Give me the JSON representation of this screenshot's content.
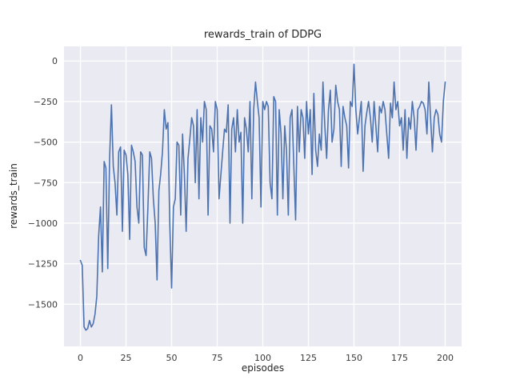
{
  "chart_data": {
    "type": "line",
    "title": "rewards_train of DDPG",
    "xlabel": "episodes",
    "ylabel": "rewards_train",
    "series_name": "rewards_train",
    "grid": true,
    "legend": "none",
    "plot_bg": "#eaeaf2",
    "grid_color": "#ffffff",
    "line_color": "#4c72b0",
    "xlim": [
      -9,
      209
    ],
    "ylim": [
      -1760,
      90
    ],
    "xticks": [
      0,
      25,
      50,
      75,
      100,
      125,
      150,
      175,
      200
    ],
    "yticks": [
      0,
      -250,
      -500,
      -750,
      -1000,
      -1250,
      -1500
    ],
    "x_start": 0,
    "x_step": 1,
    "values": [
      -1230,
      -1260,
      -1640,
      -1660,
      -1650,
      -1600,
      -1640,
      -1620,
      -1560,
      -1450,
      -1080,
      -900,
      -1300,
      -620,
      -660,
      -1280,
      -600,
      -270,
      -650,
      -750,
      -950,
      -560,
      -530,
      -1050,
      -550,
      -580,
      -700,
      -1100,
      -520,
      -560,
      -620,
      -900,
      -1000,
      -560,
      -580,
      -1150,
      -1200,
      -900,
      -560,
      -600,
      -850,
      -1000,
      -1350,
      -800,
      -700,
      -560,
      -300,
      -420,
      -380,
      -1000,
      -1400,
      -900,
      -850,
      -500,
      -520,
      -950,
      -450,
      -700,
      -1050,
      -600,
      -480,
      -350,
      -400,
      -750,
      -300,
      -850,
      -350,
      -500,
      -250,
      -300,
      -950,
      -400,
      -420,
      -560,
      -250,
      -300,
      -850,
      -700,
      -560,
      -420,
      -440,
      -270,
      -1000,
      -420,
      -350,
      -560,
      -300,
      -500,
      -440,
      -1000,
      -350,
      -420,
      -560,
      -250,
      -850,
      -300,
      -130,
      -250,
      -350,
      -900,
      -250,
      -300,
      -250,
      -280,
      -750,
      -850,
      -220,
      -250,
      -950,
      -300,
      -450,
      -850,
      -400,
      -550,
      -950,
      -350,
      -300,
      -650,
      -980,
      -280,
      -560,
      -300,
      -350,
      -600,
      -250,
      -450,
      -300,
      -700,
      -200,
      -550,
      -650,
      -450,
      -550,
      -130,
      -400,
      -600,
      -300,
      -180,
      -500,
      -420,
      -150,
      -250,
      -300,
      -650,
      -280,
      -350,
      -400,
      -660,
      -250,
      -280,
      -20,
      -300,
      -450,
      -350,
      -250,
      -680,
      -400,
      -320,
      -250,
      -350,
      -500,
      -250,
      -400,
      -560,
      -280,
      -320,
      -250,
      -300,
      -450,
      -600,
      -260,
      -350,
      -130,
      -300,
      -250,
      -400,
      -350,
      -550,
      -300,
      -600,
      -350,
      -420,
      -250,
      -350,
      -550,
      -300,
      -280,
      -250,
      -260,
      -300,
      -450,
      -130,
      -350,
      -560,
      -350,
      -300,
      -330,
      -450,
      -500,
      -250,
      -130
    ]
  }
}
